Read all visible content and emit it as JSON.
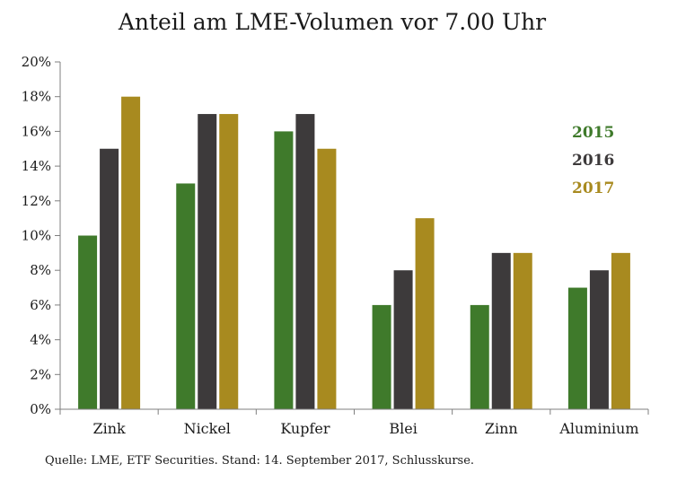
{
  "chart_data": {
    "type": "bar",
    "title": "Anteil am LME-Volumen vor 7.00 Uhr",
    "categories": [
      "Zink",
      "Nickel",
      "Kupfer",
      "Blei",
      "Zinn",
      "Aluminium"
    ],
    "series": [
      {
        "name": "2015",
        "color": "#3f7a2b",
        "values": [
          10,
          13,
          16,
          6,
          6,
          7
        ]
      },
      {
        "name": "2016",
        "color": "#3d3a3b",
        "values": [
          15,
          17,
          17,
          8,
          9,
          8
        ]
      },
      {
        "name": "2017",
        "color": "#a88a1f",
        "values": [
          18,
          17,
          15,
          11,
          9,
          9
        ]
      }
    ],
    "ylim": [
      0,
      20
    ],
    "yticks": [
      0,
      2,
      4,
      6,
      8,
      10,
      12,
      14,
      16,
      18,
      20
    ],
    "ytick_labels": [
      "0%",
      "2%",
      "4%",
      "6%",
      "8%",
      "10%",
      "12%",
      "14%",
      "16%",
      "18%",
      "20%"
    ],
    "legend_position": "right",
    "grid": false,
    "source": "Quelle: LME, ETF Securities. Stand: 14. September 2017, Schlusskurse."
  }
}
